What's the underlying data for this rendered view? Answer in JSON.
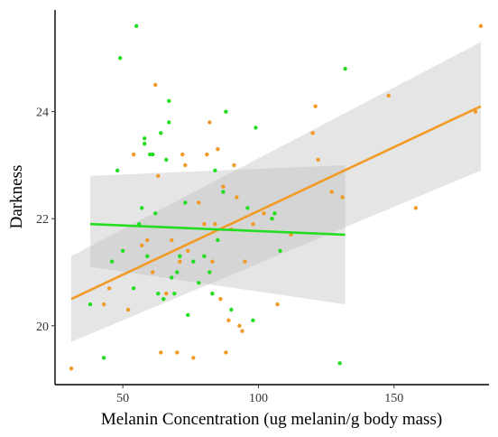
{
  "chart_data": {
    "type": "scatter",
    "xlabel": "Melanin Concentration (ug melanin/g body mass)",
    "ylabel": "Darkness",
    "xlim": [
      25,
      185
    ],
    "ylim": [
      18.9,
      25.9
    ],
    "x_ticks": [
      50,
      100,
      150
    ],
    "y_ticks": [
      20,
      22,
      24
    ],
    "grid": false,
    "legend": "none",
    "series": [
      {
        "color": "#f29a26",
        "points": [
          [
            31,
            19.2
          ],
          [
            43,
            20.4
          ],
          [
            45,
            20.7
          ],
          [
            52,
            20.3
          ],
          [
            54,
            23.2
          ],
          [
            57,
            21.5
          ],
          [
            59,
            21.6
          ],
          [
            61,
            21.0
          ],
          [
            62,
            24.5
          ],
          [
            63,
            22.8
          ],
          [
            64,
            19.5
          ],
          [
            66,
            20.6
          ],
          [
            68,
            21.6
          ],
          [
            70,
            19.5
          ],
          [
            71,
            21.2
          ],
          [
            72,
            23.2
          ],
          [
            73,
            23.0
          ],
          [
            74,
            21.4
          ],
          [
            76,
            19.4
          ],
          [
            78,
            22.3
          ],
          [
            80,
            21.9
          ],
          [
            81,
            23.2
          ],
          [
            82,
            23.8
          ],
          [
            83,
            21.2
          ],
          [
            84,
            21.9
          ],
          [
            85,
            23.3
          ],
          [
            86,
            20.5
          ],
          [
            87,
            22.6
          ],
          [
            88,
            19.5
          ],
          [
            89,
            20.1
          ],
          [
            90,
            21.8
          ],
          [
            91,
            23.0
          ],
          [
            92,
            22.4
          ],
          [
            93,
            20.0
          ],
          [
            94,
            19.9
          ],
          [
            95,
            21.2
          ],
          [
            98,
            21.9
          ],
          [
            102,
            22.1
          ],
          [
            105,
            22.0
          ],
          [
            107,
            20.4
          ],
          [
            112,
            21.7
          ],
          [
            120,
            23.6
          ],
          [
            121,
            24.1
          ],
          [
            122,
            23.1
          ],
          [
            127,
            22.5
          ],
          [
            131,
            22.4
          ],
          [
            148,
            24.3
          ],
          [
            158,
            22.2
          ],
          [
            180,
            24.0
          ],
          [
            182,
            25.6
          ]
        ],
        "fit": {
          "x": [
            31,
            182
          ],
          "y": [
            20.5,
            24.1
          ],
          "ci_lower_y": [
            19.7,
            22.9
          ],
          "ci_upper_y": [
            21.3,
            25.3
          ]
        }
      },
      {
        "color": "#22dd22",
        "points": [
          [
            38,
            20.4
          ],
          [
            43,
            19.4
          ],
          [
            46,
            21.2
          ],
          [
            48,
            22.9
          ],
          [
            49,
            25.0
          ],
          [
            50,
            21.4
          ],
          [
            54,
            20.7
          ],
          [
            55,
            25.6
          ],
          [
            56,
            21.9
          ],
          [
            57,
            22.2
          ],
          [
            58,
            23.5
          ],
          [
            58,
            23.4
          ],
          [
            59,
            21.3
          ],
          [
            60,
            23.2
          ],
          [
            61,
            23.2
          ],
          [
            62,
            22.1
          ],
          [
            63,
            20.6
          ],
          [
            64,
            23.6
          ],
          [
            65,
            20.5
          ],
          [
            66,
            23.1
          ],
          [
            67,
            23.8
          ],
          [
            67,
            24.2
          ],
          [
            68,
            20.9
          ],
          [
            69,
            20.6
          ],
          [
            70,
            21.0
          ],
          [
            71,
            21.3
          ],
          [
            73,
            22.3
          ],
          [
            74,
            20.2
          ],
          [
            76,
            21.2
          ],
          [
            78,
            20.8
          ],
          [
            80,
            21.3
          ],
          [
            82,
            21.0
          ],
          [
            83,
            20.6
          ],
          [
            84,
            22.9
          ],
          [
            85,
            21.6
          ],
          [
            87,
            22.5
          ],
          [
            88,
            24.0
          ],
          [
            90,
            20.3
          ],
          [
            96,
            22.2
          ],
          [
            98,
            20.1
          ],
          [
            99,
            23.7
          ],
          [
            105,
            22.0
          ],
          [
            106,
            22.1
          ],
          [
            108,
            21.4
          ],
          [
            130,
            19.3
          ],
          [
            132,
            24.8
          ]
        ],
        "fit": {
          "x": [
            38,
            132
          ],
          "y": [
            21.9,
            21.7
          ],
          "ci_lower_y": [
            21.1,
            20.4
          ],
          "ci_upper_y": [
            22.8,
            23.0
          ]
        }
      }
    ]
  }
}
